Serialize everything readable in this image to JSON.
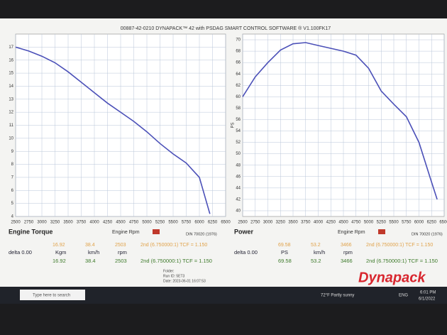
{
  "window_title": "00887-42-0210 DYNAPACK™ 42 with PSDAG SMART CONTROL SOFTWARE ® V1.100FK17",
  "chart_data": [
    {
      "type": "line",
      "color": "#4b50b8",
      "x": [
        2500,
        2750,
        3000,
        3250,
        3500,
        3750,
        4000,
        4250,
        4500,
        4750,
        5000,
        5250,
        5500,
        5750,
        6000,
        6200
      ],
      "values": [
        17.0,
        16.7,
        16.3,
        15.8,
        15.1,
        14.3,
        13.5,
        12.7,
        12.0,
        11.3,
        10.5,
        9.6,
        8.8,
        8.1,
        7.0,
        4.2
      ],
      "xlim": [
        2500,
        6500
      ],
      "xticks": [
        2500,
        2750,
        3000,
        3250,
        3500,
        3750,
        4000,
        4250,
        4500,
        4750,
        5000,
        5250,
        5500,
        5750,
        6000,
        6250,
        6500
      ],
      "ylim": [
        4,
        18
      ],
      "yticks": [
        4,
        5,
        6,
        7,
        8,
        9,
        10,
        11,
        12,
        13,
        14,
        15,
        16,
        17
      ],
      "grid": true
    },
    {
      "type": "line",
      "color": "#4b50b8",
      "y_label": "PS",
      "x": [
        2500,
        2750,
        3000,
        3250,
        3500,
        3750,
        4000,
        4250,
        4500,
        4750,
        5000,
        5250,
        5500,
        5750,
        6000,
        6250,
        6360
      ],
      "values": [
        60.0,
        63.5,
        66.0,
        68.2,
        69.3,
        69.5,
        69.0,
        68.5,
        68.0,
        67.3,
        65.0,
        61.0,
        58.7,
        56.5,
        52.0,
        45.0,
        42.0
      ],
      "xlim": [
        2500,
        6500
      ],
      "xticks": [
        2500,
        2750,
        3000,
        3250,
        3500,
        3750,
        4000,
        4250,
        4500,
        4750,
        5000,
        5250,
        5500,
        5750,
        6000,
        6250,
        6500
      ],
      "ylim": [
        39,
        71
      ],
      "yticks": [
        40,
        42,
        44,
        46,
        48,
        50,
        52,
        54,
        56,
        58,
        60,
        62,
        64,
        66,
        68,
        70
      ],
      "grid": true
    }
  ],
  "panels": [
    {
      "title": "Engine Torque",
      "rpm_label": "Engine Rpm",
      "standard": "DIN 70020 (1976)",
      "cursor": [
        "16.92",
        "38.4",
        "2503",
        "2nd (6.750000:1) TCF = 1.150"
      ],
      "delta": "delta 0.00",
      "units": [
        "Kgm",
        "km/h",
        "rpm"
      ],
      "readout": [
        "16.92",
        "38.4",
        "2503",
        "2nd (6.750000:1) TCF = 1.150"
      ]
    },
    {
      "title": "Power",
      "rpm_label": "Engine Rpm",
      "standard": "DIN 70020 (1976)",
      "cursor": [
        "69.58",
        "53.2",
        "3466",
        "2nd (6.750000:1) TCF = 1.150"
      ],
      "delta": "delta 0.00",
      "units": [
        "PS",
        "km/h",
        "rpm"
      ],
      "readout": [
        "69.58",
        "53.2",
        "3466",
        "2nd (6.750000:1) TCF = 1.150"
      ]
    }
  ],
  "footer": [
    "Folder:",
    "Run ID: 5ET3",
    "Date: 2023-06-01 16:07:53"
  ],
  "logo": "Dynapack",
  "taskbar": {
    "search": "Type here to search",
    "weather": "72°F  Partly sunny",
    "language": "ENG",
    "time": "6:01 PM",
    "date": "6/1/2022"
  }
}
